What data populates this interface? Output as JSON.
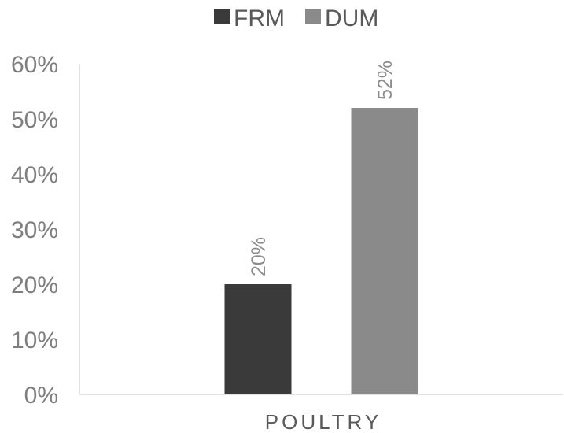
{
  "chart_data": {
    "type": "bar",
    "categories": [
      "POULTRY"
    ],
    "series": [
      {
        "name": "FRM",
        "values": [
          20
        ],
        "color": "#3a3a3a"
      },
      {
        "name": "DUM",
        "values": [
          52
        ],
        "color": "#8a8a8a"
      }
    ],
    "data_labels": [
      "20%",
      "52%"
    ],
    "y_ticks": [
      "0%",
      "10%",
      "20%",
      "30%",
      "40%",
      "50%",
      "60%"
    ],
    "ylim": [
      0,
      60
    ],
    "grid": false,
    "legend_position": "top-center",
    "title": "",
    "xlabel": "",
    "ylabel": ""
  }
}
